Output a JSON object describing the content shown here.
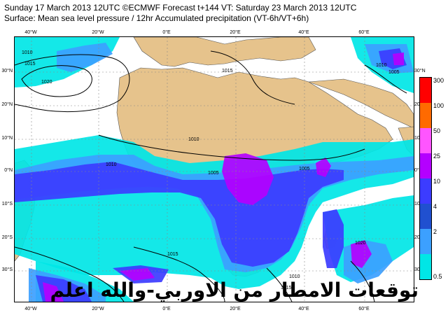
{
  "title_line1": "Sunday 17 March 2013 12UTC ©ECMWF Forecast t+144 VT: Saturday 23 March 2013 12UTC",
  "title_line2": "Surface: Mean sea level pressure / 12hr Accumulated precipitation (VT-6h/VT+6h)",
  "lon_labels_top": [
    "40°W",
    "20°W",
    "0°E",
    "20°E",
    "40°E",
    "60°E"
  ],
  "lon_labels_bottom": [
    "40°W",
    "20°W",
    "0°E",
    "20°E",
    "40°E",
    "60°E"
  ],
  "lat_labels": [
    "30°N",
    "20°N",
    "10°N",
    "0°N",
    "10°S",
    "20°S",
    "30°S"
  ],
  "isobar_labels": [
    "1010",
    "1015",
    "1020",
    "1015",
    "1010",
    "1005",
    "1010",
    "1005",
    "1005",
    "1010",
    "1015",
    "1020",
    "1010",
    "1015"
  ],
  "legend": {
    "labels": [
      "300",
      "100",
      "50",
      "25",
      "10",
      "4",
      "2",
      "0.5"
    ],
    "colors": [
      "#ff0000",
      "#ff6a00",
      "#ff55ff",
      "#b400ff",
      "#3c3cff",
      "#2050d0",
      "#3ca0ff",
      "#00e6e6"
    ]
  },
  "colors": {
    "land": "#e6c38c",
    "sea": "#ffffff",
    "precip_light": "#00e6e6",
    "precip_moderate": "#3ca0ff",
    "precip_heavy": "#3c3cff",
    "precip_very_heavy": "#b400ff",
    "precip_extreme": "#ff55ff"
  },
  "overlay_text": "توقعات الامطار من الاوربي-والله اعلم"
}
